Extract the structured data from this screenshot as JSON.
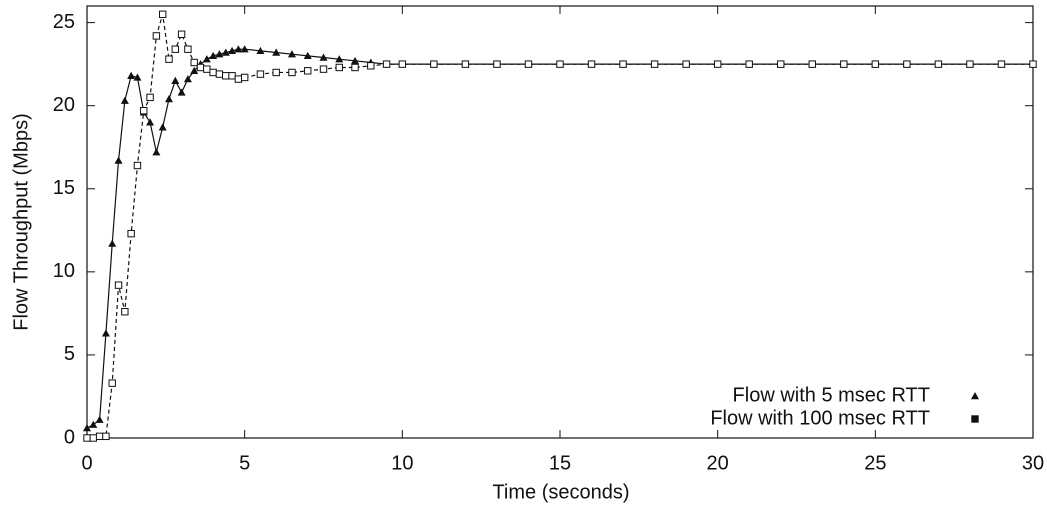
{
  "chart_data": {
    "type": "line",
    "x_label": "Time (seconds)",
    "y_label": "Flow Throughput (Mbps)",
    "x": [
      0,
      0.2,
      0.4,
      0.6,
      0.8,
      1.0,
      1.2,
      1.4,
      1.6,
      1.8,
      2.0,
      2.2,
      2.4,
      2.6,
      2.8,
      3.0,
      3.2,
      3.4,
      3.6,
      3.8,
      4.0,
      4.2,
      4.4,
      4.6,
      4.8,
      5.0,
      5.5,
      6,
      6.5,
      7,
      7.5,
      8,
      8.5,
      9,
      9.5,
      10,
      11,
      12,
      13,
      14,
      15,
      16,
      17,
      18,
      19,
      20,
      21,
      22,
      23,
      24,
      25,
      26,
      27,
      28,
      29,
      30
    ],
    "series": [
      {
        "name": "Flow with 5 msec RTT",
        "color": "#111111",
        "marker": "triangle",
        "dash": "solid",
        "values": [
          0.6,
          0.8,
          1.1,
          6.3,
          11.7,
          16.7,
          20.3,
          21.8,
          21.7,
          19.6,
          19.0,
          17.2,
          18.7,
          20.4,
          21.5,
          20.8,
          21.6,
          22.1,
          22.5,
          22.8,
          23.0,
          23.1,
          23.2,
          23.3,
          23.4,
          23.4,
          23.3,
          23.2,
          23.1,
          23.0,
          22.9,
          22.8,
          22.7,
          22.6,
          22.5,
          22.5,
          22.5,
          22.5,
          22.5,
          22.5,
          22.5,
          22.5,
          22.5,
          22.5,
          22.5,
          22.5,
          22.5,
          22.5,
          22.5,
          22.5,
          22.5,
          22.5,
          22.5,
          22.5,
          22.5,
          22.5
        ]
      },
      {
        "name": "Flow with 100 msec RTT",
        "color": "#111111",
        "marker": "square",
        "dash": "dashed",
        "values": [
          0,
          0,
          0.1,
          0.1,
          3.3,
          9.2,
          7.6,
          12.3,
          16.4,
          19.7,
          20.5,
          24.2,
          25.5,
          22.8,
          23.4,
          24.3,
          23.4,
          22.6,
          22.3,
          22.2,
          22.0,
          21.9,
          21.8,
          21.8,
          21.6,
          21.7,
          21.9,
          22.0,
          22.0,
          22.1,
          22.2,
          22.3,
          22.3,
          22.4,
          22.5,
          22.5,
          22.5,
          22.5,
          22.5,
          22.5,
          22.5,
          22.5,
          22.5,
          22.5,
          22.5,
          22.5,
          22.5,
          22.5,
          22.5,
          22.5,
          22.5,
          22.5,
          22.5,
          22.5,
          22.5,
          22.5
        ]
      }
    ],
    "xlim": [
      0,
      30
    ],
    "xticks": [
      0,
      5,
      10,
      15,
      20,
      25,
      30
    ],
    "ylim": [
      0,
      26
    ],
    "yticks": [
      0,
      5,
      10,
      15,
      20,
      25
    ],
    "legend": "lower right"
  }
}
